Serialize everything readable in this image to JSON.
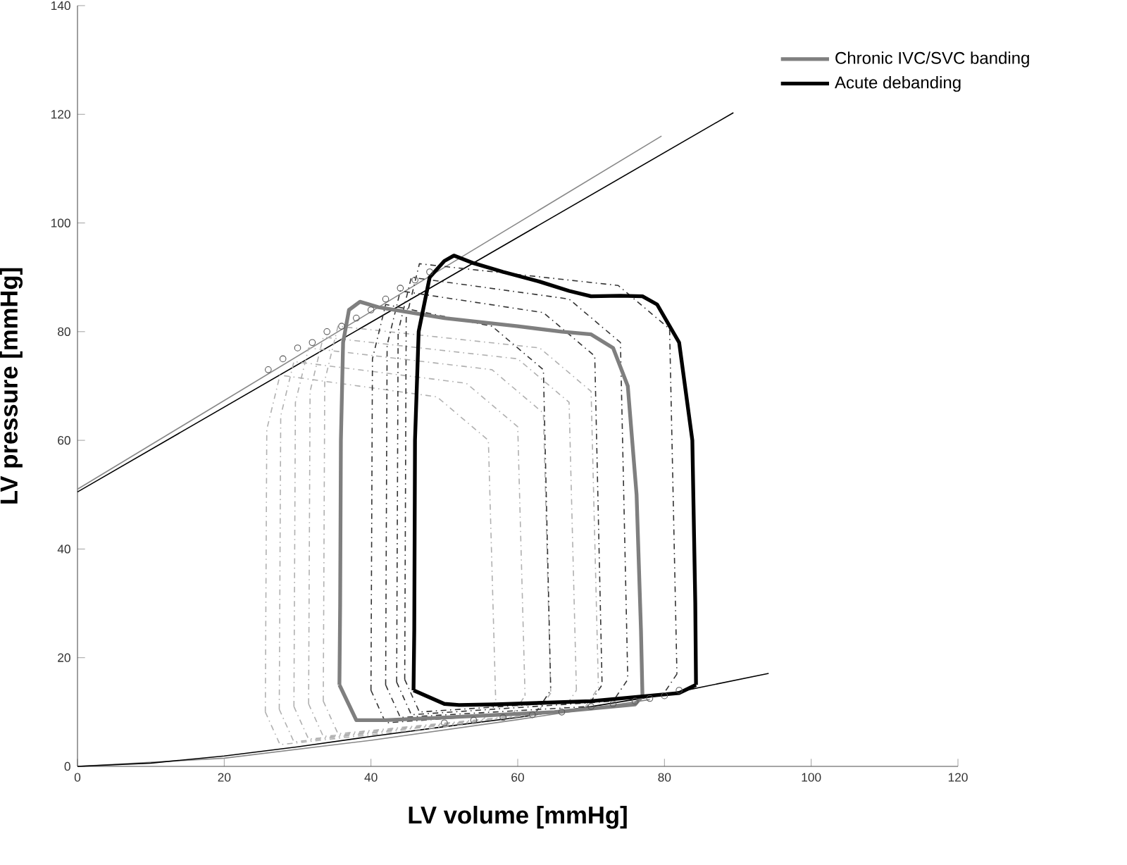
{
  "chart_data": {
    "type": "line",
    "xlabel": "LV volume [mmHg]",
    "ylabel": "LV pressure [mmHg]",
    "xlim": [
      0,
      120
    ],
    "ylim": [
      0,
      140
    ],
    "xticks": [
      0,
      20,
      40,
      60,
      80,
      100,
      120
    ],
    "yticks": [
      0,
      20,
      40,
      60,
      80,
      100,
      120,
      140
    ],
    "grid": false,
    "legend": "top right",
    "series": [
      {
        "type": "line",
        "color": "#888888",
        "x": [
          0,
          79.6
        ],
        "values": [
          51,
          116
        ]
      },
      {
        "type": "line",
        "color": "#000000",
        "x": [
          0,
          89.4
        ],
        "values": [
          50.5,
          120.3
        ]
      },
      {
        "type": "line",
        "color": "#888888",
        "x": [
          0,
          20,
          40,
          60,
          78
        ],
        "values": [
          0,
          1.5,
          4.8,
          8.6,
          12.3
        ]
      },
      {
        "type": "line",
        "color": "#000000",
        "x": [
          0,
          10,
          20,
          30,
          40,
          50,
          60,
          70,
          80,
          94.2
        ],
        "values": [
          0,
          0.6,
          1.9,
          3.6,
          5.5,
          7.3,
          9,
          11,
          13.2,
          17.1
        ]
      },
      {
        "line_style": "dashed",
        "color": "#b0b0b0",
        "x": [
          25.6,
          25.8,
          27.6,
          49,
          56,
          57,
          null,
          25.6,
          27.6,
          55,
          57
        ],
        "values": [
          10,
          62,
          72,
          68,
          60,
          12,
          null,
          10,
          4,
          8,
          12
        ]
      },
      {
        "line_style": "dashed",
        "color": "#b0b0b0",
        "x": [
          27.5,
          27.7,
          29.5,
          53,
          60,
          61,
          null,
          27.5,
          29.5,
          59,
          61
        ],
        "values": [
          10.5,
          64.5,
          74.5,
          70.5,
          62.5,
          13,
          null,
          10.5,
          4.5,
          9,
          13
        ]
      },
      {
        "line_style": "dashed",
        "color": "#b0b0b0",
        "x": [
          29.5,
          29.7,
          31.5,
          56.5,
          63.5,
          64.5,
          null,
          29.5,
          31.5,
          62.5,
          64.5
        ],
        "values": [
          11,
          67,
          77,
          73,
          65,
          13.5,
          null,
          11,
          5,
          9.5,
          13.5
        ]
      },
      {
        "line_style": "dashed",
        "color": "#b0b0b0",
        "x": [
          31.5,
          31.7,
          33.5,
          60,
          67,
          68,
          null,
          31.5,
          33.5,
          66,
          68
        ],
        "values": [
          11.5,
          69,
          79,
          75,
          67,
          14,
          null,
          11.5,
          5.5,
          10,
          14
        ]
      },
      {
        "line_style": "dashed",
        "color": "#b0b0b0",
        "x": [
          33.5,
          33.7,
          35.5,
          63,
          70,
          71,
          null,
          33.5,
          35.5,
          69,
          71
        ],
        "values": [
          12,
          71,
          81,
          77,
          69,
          14.5,
          null,
          12,
          6,
          10.5,
          14.5
        ]
      },
      {
        "line_style": "dashed",
        "color": "#333333",
        "x": [
          40,
          40.2,
          42,
          56.5,
          63.5,
          64.5,
          null,
          40,
          42,
          62.5,
          64.5
        ],
        "values": [
          14,
          75,
          85,
          81,
          73,
          14,
          null,
          14,
          8,
          10,
          14
        ]
      },
      {
        "line_style": "dashed",
        "color": "#333333",
        "x": [
          42,
          42.2,
          44,
          63.5,
          70.5,
          71.5,
          null,
          42,
          44,
          69.5,
          71.5
        ],
        "values": [
          15,
          77.5,
          87.5,
          83.5,
          75.5,
          15,
          null,
          15,
          9,
          11,
          15
        ]
      },
      {
        "line_style": "dashed",
        "color": "#333333",
        "x": [
          43.5,
          43.7,
          45.5,
          67,
          74,
          75,
          null,
          43.5,
          45.5,
          73,
          75
        ],
        "values": [
          15.5,
          80,
          90,
          86,
          78,
          16,
          null,
          15.5,
          9.5,
          12,
          16
        ]
      },
      {
        "line_style": "dashed",
        "color": "#333333",
        "x": [
          44.6,
          44.8,
          46.6,
          73.7,
          80.7,
          81.7,
          null,
          44.6,
          46.6,
          79.7,
          81.7
        ],
        "values": [
          16,
          82.5,
          92.5,
          88.5,
          80.5,
          17,
          null,
          16,
          10,
          13,
          17
        ]
      },
      {
        "type": "scatter",
        "color": "#555555",
        "marker": "circle",
        "x": [
          26,
          28,
          30,
          32,
          34,
          36,
          38,
          40,
          42,
          44,
          46,
          48
        ],
        "values": [
          73,
          75,
          77,
          78,
          80,
          81,
          82.5,
          84,
          86,
          88,
          89.5,
          91
        ]
      },
      {
        "type": "scatter",
        "color": "#555555",
        "marker": "circle",
        "x": [
          50,
          54,
          58,
          62,
          66,
          70,
          73,
          76,
          78,
          80,
          82
        ],
        "values": [
          8,
          8.5,
          9,
          9.5,
          10,
          11,
          11.5,
          12,
          12.5,
          13,
          14
        ]
      },
      {
        "name": "Chronic IVC/SVC banding",
        "color": "#7f7f7f",
        "x": [
          35.7,
          35.8,
          35.9,
          36.2,
          37,
          38.5,
          41,
          50,
          60,
          66,
          70,
          73,
          75,
          76.2,
          76.8,
          77,
          null,
          35.7,
          38,
          42,
          50,
          65,
          76,
          77
        ],
        "values": [
          15,
          30,
          60,
          78,
          84,
          85.5,
          84.5,
          82.5,
          81,
          80,
          79.5,
          77,
          70,
          50,
          25,
          13,
          null,
          15,
          8.5,
          8.5,
          9,
          10,
          11.4,
          13
        ]
      },
      {
        "name": "Acute debanding",
        "color": "#000000",
        "x": [
          45.8,
          45.9,
          46,
          46.5,
          48,
          50,
          51.3,
          54,
          58,
          63,
          67,
          70,
          74,
          77,
          79,
          82,
          83.8,
          84.2,
          84.3,
          null,
          45.8,
          50,
          52,
          57,
          70,
          82,
          84.3
        ],
        "values": [
          14,
          25,
          60,
          80,
          90,
          93,
          94,
          92.6,
          91,
          89.2,
          87.5,
          86.5,
          86.6,
          86.5,
          85,
          78,
          60,
          30,
          15,
          null,
          14,
          11.5,
          11.3,
          11.4,
          12,
          13.5,
          15
        ]
      }
    ]
  }
}
